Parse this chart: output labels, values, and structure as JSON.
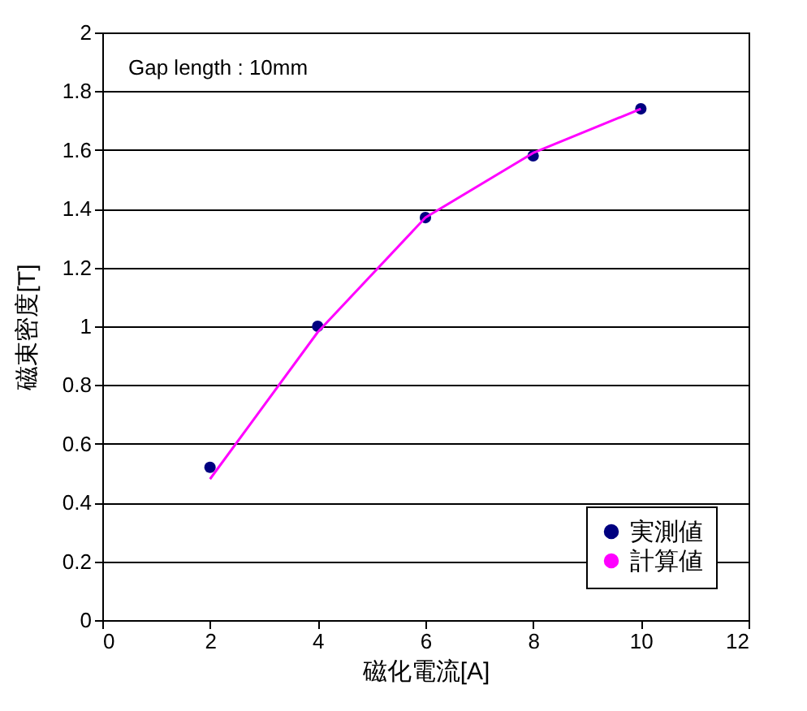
{
  "chart_data": {
    "type": "line",
    "xlabel": "磁化電流[A]",
    "ylabel": "磁束密度[T]",
    "annotations": [
      "Gap length : 10mm"
    ],
    "xlim": [
      0,
      12
    ],
    "xticks": [
      0,
      2,
      4,
      6,
      8,
      10,
      12
    ],
    "ylim": [
      0,
      2
    ],
    "yticks": [
      0,
      0.2,
      0.4,
      0.6,
      0.8,
      1,
      1.2,
      1.4,
      1.6,
      1.8,
      2
    ],
    "grid": "y",
    "legend": "bottom right",
    "series": [
      {
        "name": "実測値",
        "type": "scatter",
        "marker": "circle",
        "color": "#000080",
        "x": [
          2,
          4,
          6,
          8,
          10
        ],
        "values": [
          0.52,
          1.0,
          1.37,
          1.58,
          1.74
        ]
      },
      {
        "name": "計算値",
        "marker": "none",
        "color": "#ff00ff",
        "x": [
          2,
          4,
          6,
          8,
          10
        ],
        "values": [
          0.48,
          0.98,
          1.37,
          1.59,
          1.74
        ]
      }
    ]
  }
}
